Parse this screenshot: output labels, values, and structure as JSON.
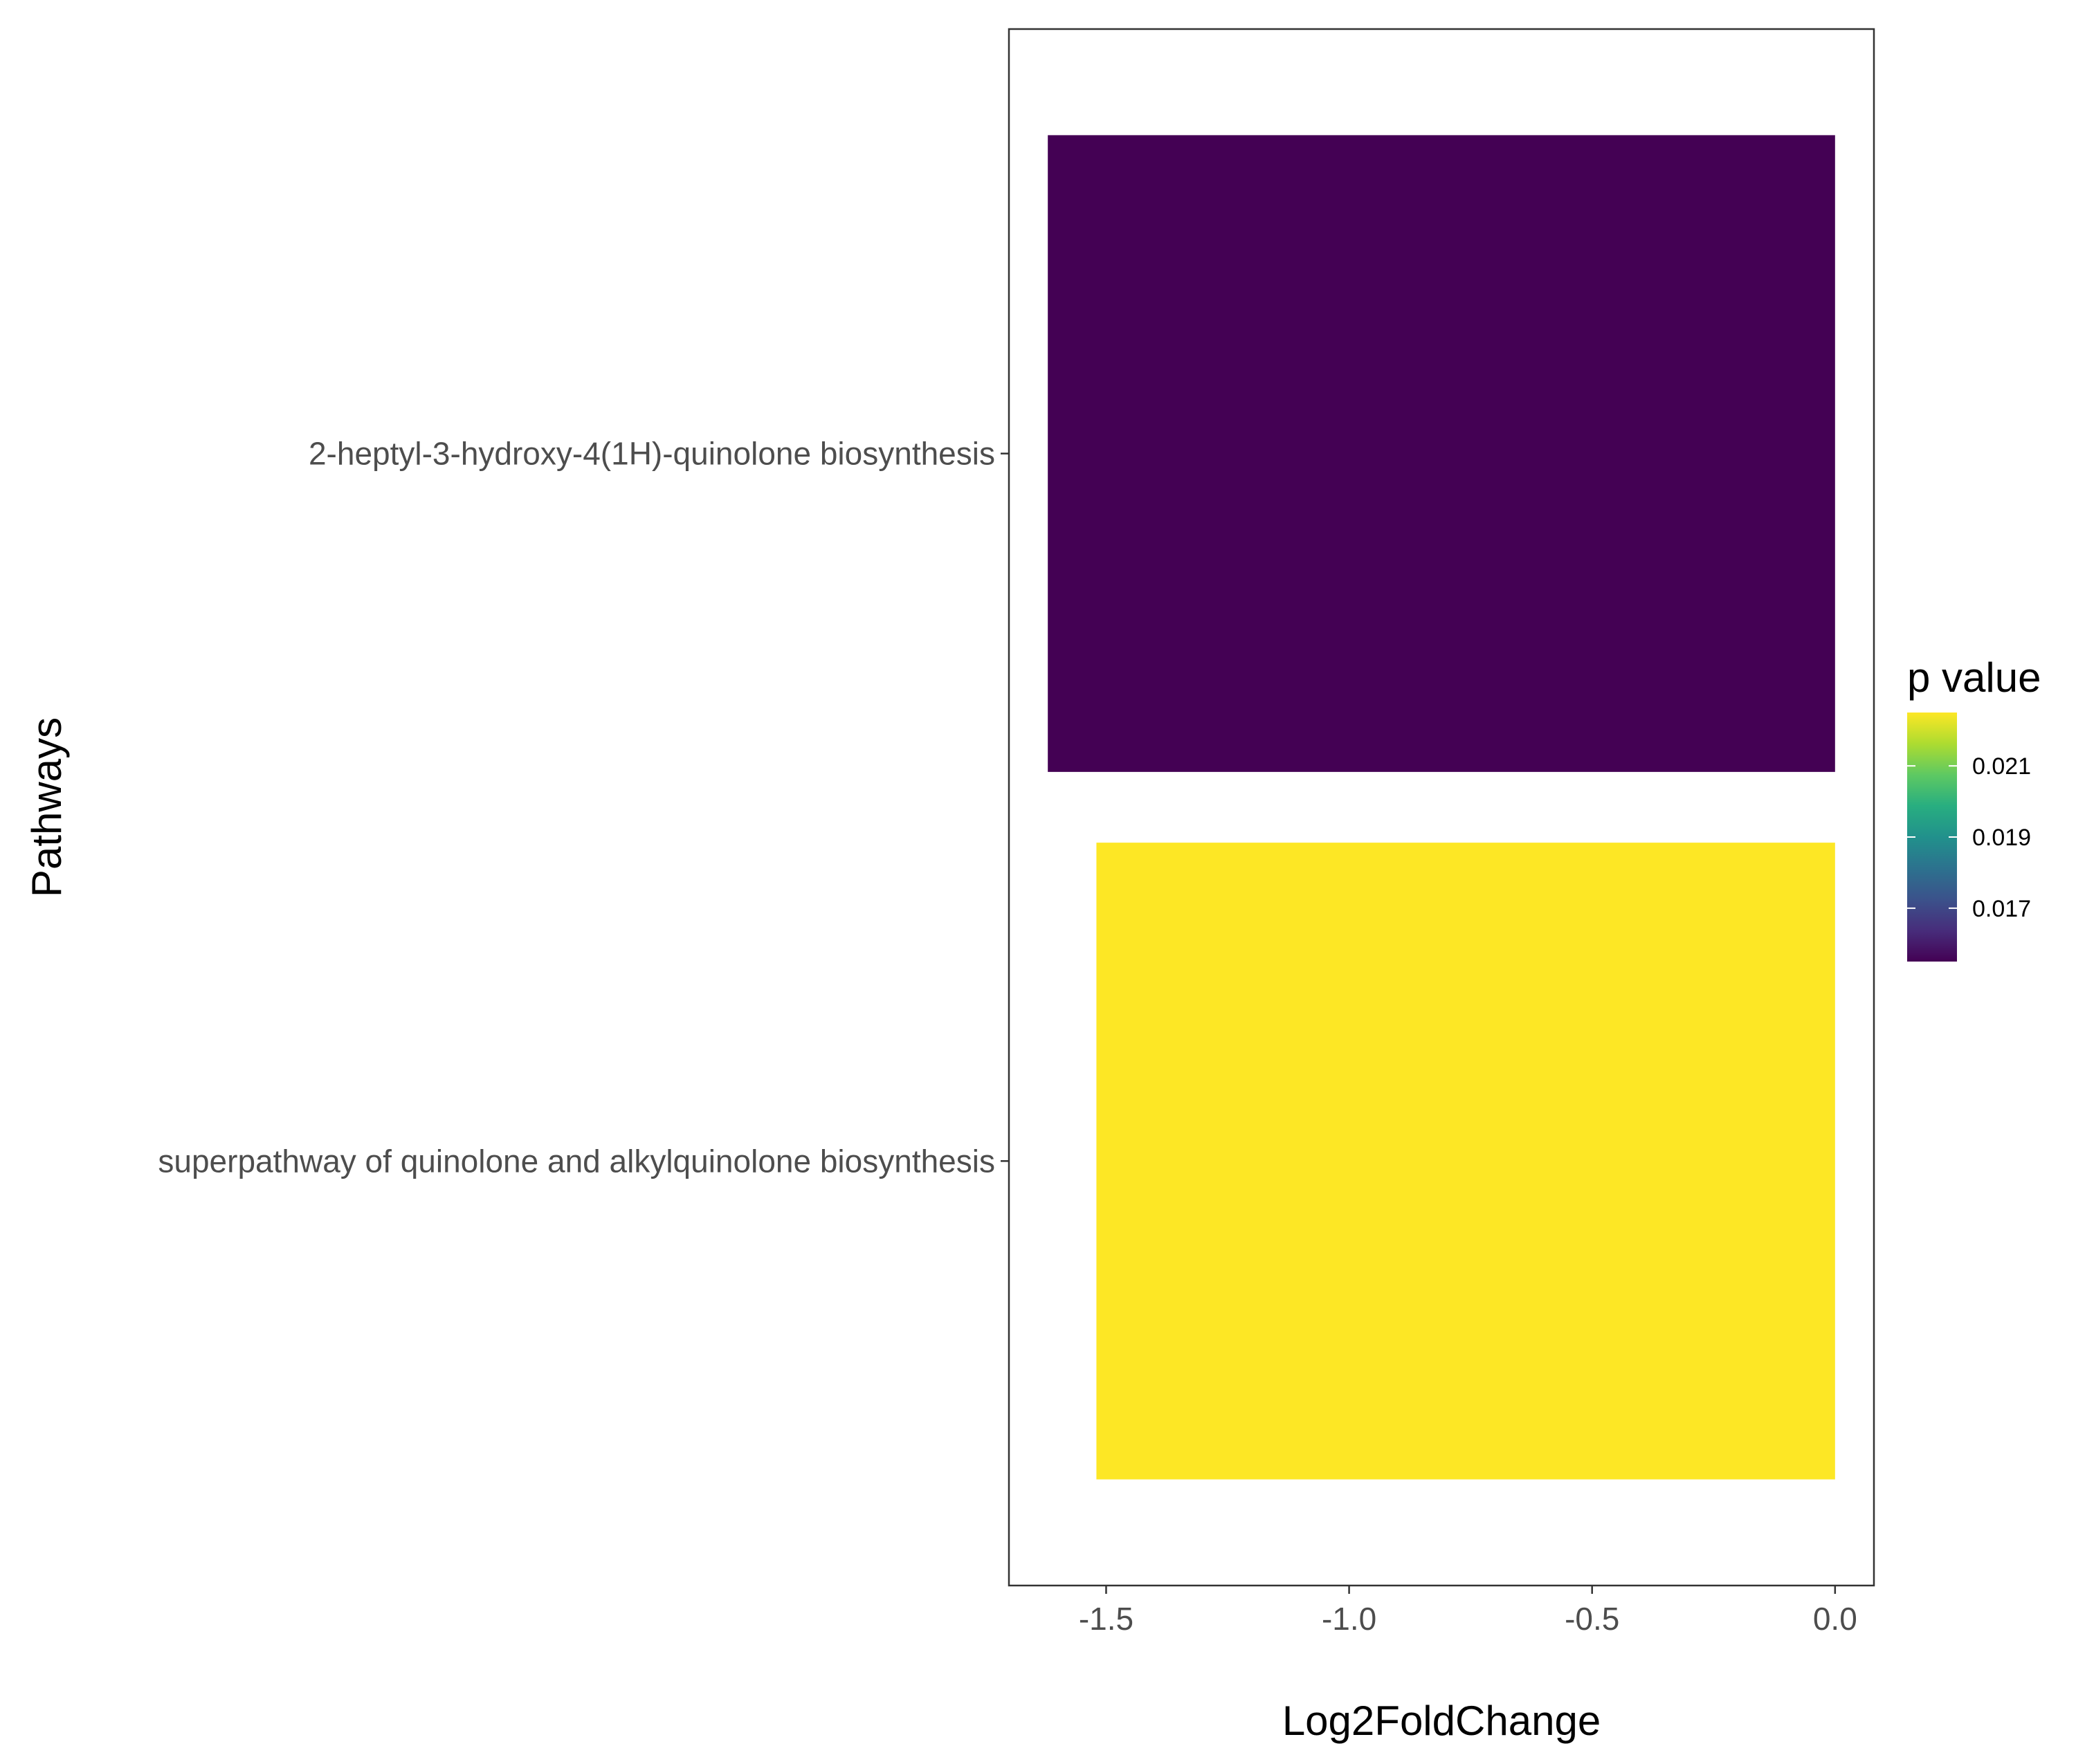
{
  "chart_data": {
    "type": "bar",
    "orientation": "horizontal",
    "title": "",
    "xlabel": "Log2FoldChange",
    "ylabel": "Pathways",
    "xlim": [
      -1.7,
      0.08
    ],
    "xticks": [
      -1.5,
      -1.0,
      -0.5,
      0.0
    ],
    "xtick_labels": [
      "-1.5",
      "-1.0",
      "-0.5",
      "0.0"
    ],
    "categories": [
      "2-heptyl-3-hydroxy-4(1H)-quinolone biosynthesis",
      "superpathway of quinolone and alkylquinolone biosynthesis"
    ],
    "values": [
      -1.62,
      -1.52
    ],
    "p_values": [
      0.0155,
      0.0225
    ],
    "grid": false,
    "legend": {
      "title": "p value",
      "position": "right",
      "type": "colorbar",
      "colormap": "viridis",
      "range": [
        0.0155,
        0.0225
      ],
      "ticks": [
        0.017,
        0.019,
        0.021
      ],
      "tick_labels": [
        "0.017",
        "0.019",
        "0.021"
      ]
    },
    "colors": {
      "low": "#440154",
      "high": "#FDE725"
    }
  }
}
